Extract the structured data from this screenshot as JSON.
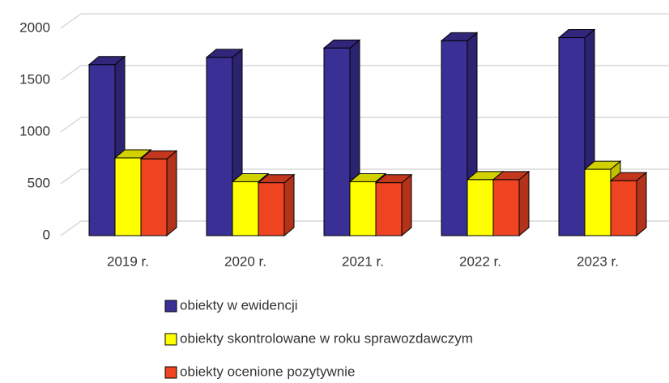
{
  "chart_data": {
    "type": "bar3d",
    "categories": [
      "2019 r.",
      "2020 r.",
      "2021 r.",
      "2022 r.",
      "2023 r."
    ],
    "series": [
      {
        "name": "obiekty w ewidencji",
        "color": "#3a2f95",
        "values": [
          1650,
          1720,
          1810,
          1880,
          1910
        ]
      },
      {
        "name": "obiekty skontrolowane w roku sprawozdawczym",
        "color": "#ffff00",
        "values": [
          750,
          520,
          520,
          540,
          640
        ]
      },
      {
        "name": "obiekty ocenione pozytywnie",
        "color": "#ee4422",
        "values": [
          740,
          510,
          510,
          540,
          530
        ]
      }
    ],
    "ylim": [
      0,
      2000
    ],
    "yticks": [
      0,
      500,
      1000,
      1500,
      2000
    ],
    "grid": true,
    "legend": "bottom"
  }
}
